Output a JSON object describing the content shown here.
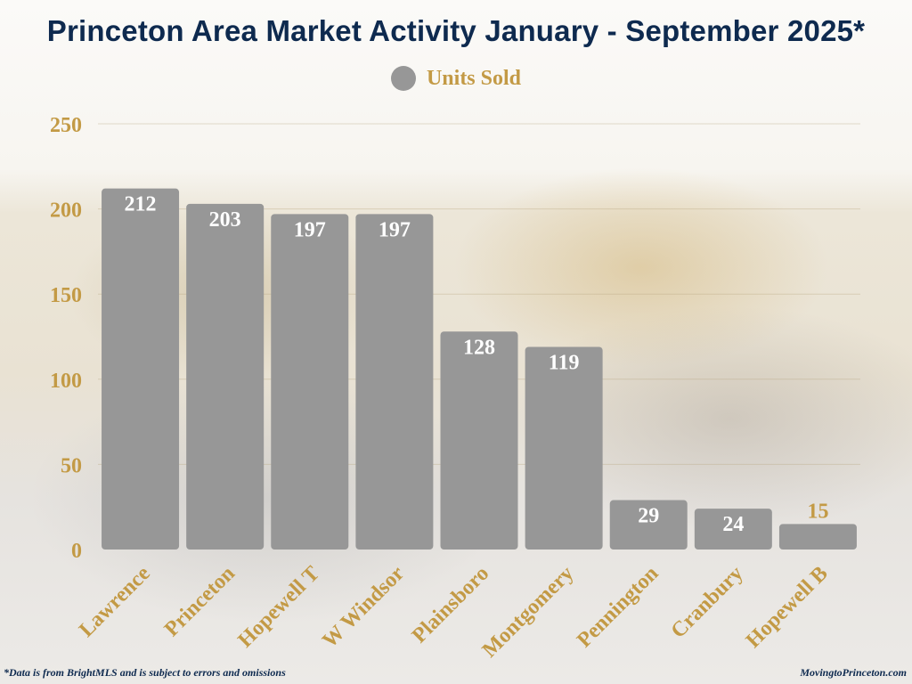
{
  "title": "Princeton Area Market Activity January - September 2025*",
  "legend": {
    "label": "Units Sold",
    "color": "#979797"
  },
  "footnote": "*Data is from BrightMLS and is subject to errors and omissions",
  "site": "MovingtoPrinceton.com",
  "colors": {
    "bar": "#979797",
    "label_gold": "#c39a45",
    "title_navy": "#0e2a4f",
    "inside_label": "#ffffff"
  },
  "chart_data": {
    "type": "bar",
    "title": "Princeton Area Market Activity January - September 2025*",
    "categories": [
      "Lawrence",
      "Princeton",
      "Hopewell T",
      "W Windsor",
      "Plainsboro",
      "Montgomery",
      "Pennington",
      "Cranbury",
      "Hopewell B"
    ],
    "series": [
      {
        "name": "Units Sold",
        "values": [
          212,
          203,
          197,
          197,
          128,
          119,
          29,
          24,
          15
        ]
      }
    ],
    "ylim": [
      0,
      250
    ],
    "yticks": [
      0,
      50,
      100,
      150,
      200,
      250
    ],
    "grid": true,
    "legend_position": "top-center",
    "data_labels": true
  }
}
